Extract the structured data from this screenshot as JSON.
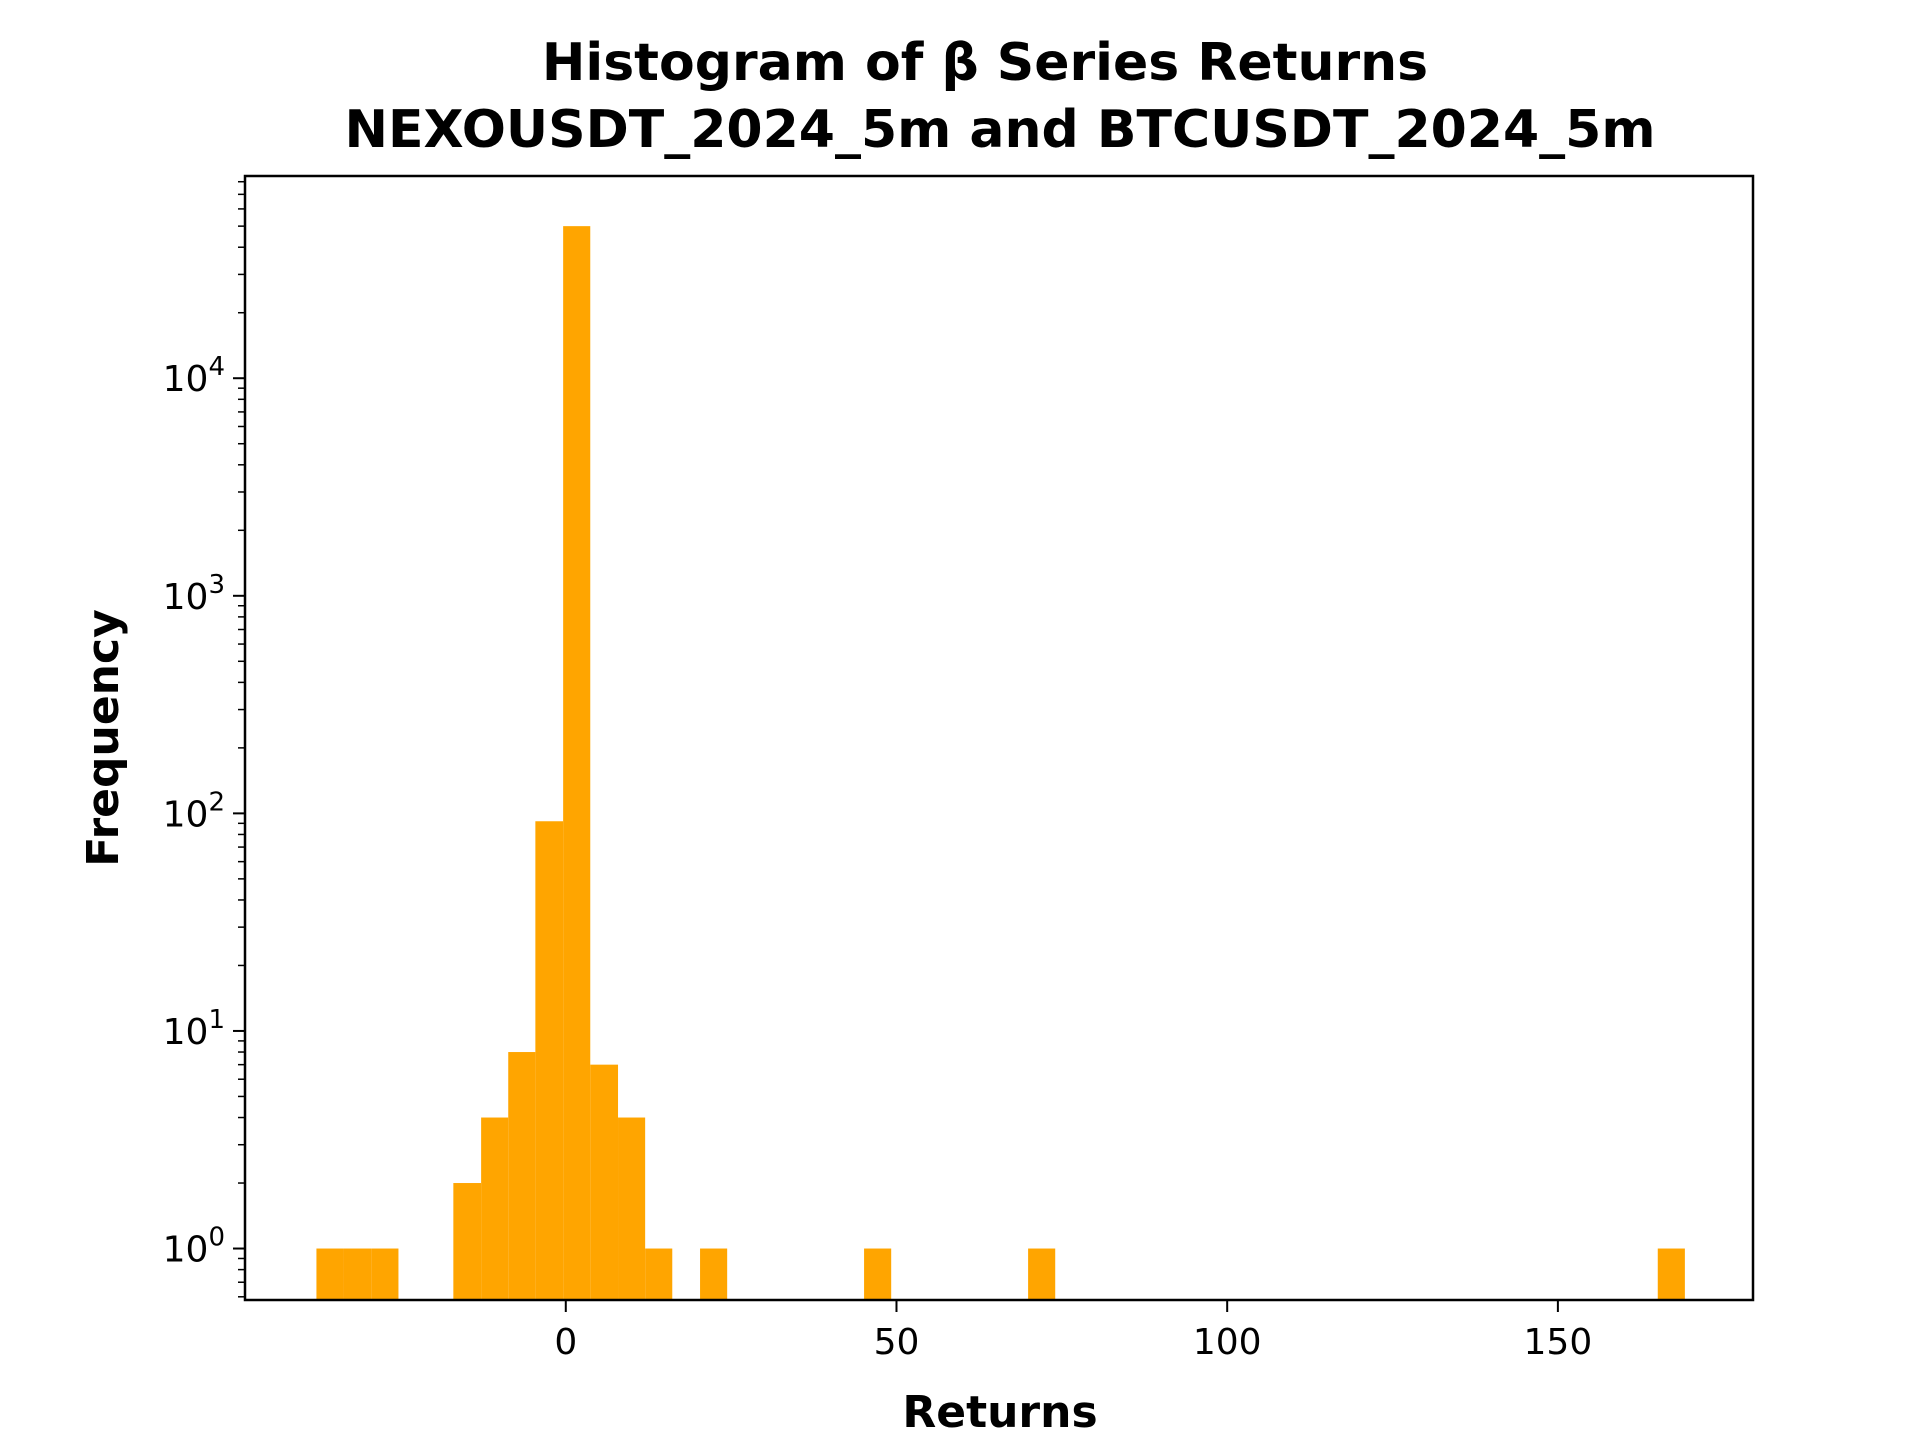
{
  "chart_data": {
    "type": "bar",
    "title_lines": [
      "Histogram of β Series Returns",
      "NEXOUSDT_2024_5m and BTCUSDT_2024_5m"
    ],
    "xlabel": "Returns",
    "ylabel": "Frequency",
    "y_scale": "log",
    "x_ticks": [
      0,
      50,
      100,
      150
    ],
    "y_ticks": [
      {
        "base": "10",
        "exp": "0",
        "value": 1
      },
      {
        "base": "10",
        "exp": "1",
        "value": 10
      },
      {
        "base": "10",
        "exp": "2",
        "value": 100
      },
      {
        "base": "10",
        "exp": "3",
        "value": 1000
      },
      {
        "base": "10",
        "exp": "4",
        "value": 10000
      }
    ],
    "xlim": [
      -48.5,
      179.5
    ],
    "ylim": [
      0.58,
      85000
    ],
    "grid": false,
    "bar_color": "#ffa500",
    "bins": [
      {
        "x0": -37.7,
        "x1": -33.6,
        "count": 1
      },
      {
        "x0": -33.6,
        "x1": -29.4,
        "count": 1
      },
      {
        "x0": -29.4,
        "x1": -25.3,
        "count": 1
      },
      {
        "x0": -17.0,
        "x1": -12.8,
        "count": 2
      },
      {
        "x0": -12.8,
        "x1": -8.7,
        "count": 4
      },
      {
        "x0": -8.7,
        "x1": -4.6,
        "count": 8
      },
      {
        "x0": -4.6,
        "x1": -0.4,
        "count": 92
      },
      {
        "x0": -0.4,
        "x1": 3.7,
        "count": 50000
      },
      {
        "x0": 3.7,
        "x1": 7.9,
        "count": 7
      },
      {
        "x0": 7.9,
        "x1": 12.0,
        "count": 4
      },
      {
        "x0": 12.0,
        "x1": 16.1,
        "count": 1
      },
      {
        "x0": 20.3,
        "x1": 24.4,
        "count": 1
      },
      {
        "x0": 45.1,
        "x1": 49.2,
        "count": 1
      },
      {
        "x0": 69.9,
        "x1": 74.0,
        "count": 1
      },
      {
        "x0": 165.1,
        "x1": 169.2,
        "count": 1
      }
    ]
  }
}
